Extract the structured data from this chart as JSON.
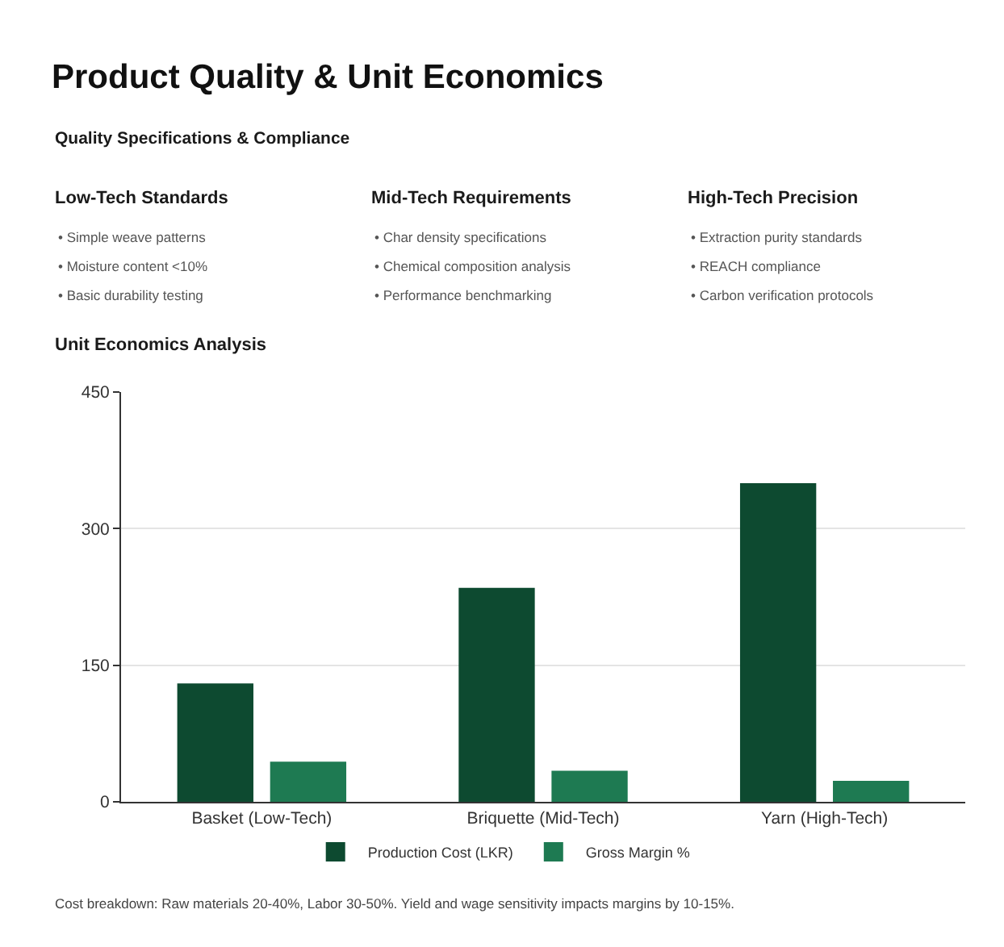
{
  "chart_data": {
    "type": "bar",
    "title": "Product Quality & Unit Economics",
    "subtitle": "Quality Specifications & Compliance",
    "annotations": [
      "Low-Tech Standards",
      "• Simple weave patterns",
      "• Moisture content <10%",
      "• Basic durability testing",
      "Mid-Tech Requirements",
      "• Char density specifications",
      "• Chemical composition analysis",
      "• Performance benchmarking",
      "High-Tech Precision",
      "• Extraction purity standards",
      "• REACH compliance",
      "• Carbon verification protocols",
      "Unit Economics Analysis",
      "Cost breakdown: Raw materials 20-40%, Labor 30-50%. Yield and wage sensitivity impacts margins by 10-15%."
    ],
    "categories": [
      "Basket (Low-Tech)",
      "Briquette (Mid-Tech)",
      "Yarn (High-Tech)"
    ],
    "series": [
      {
        "name": "Production Cost (LKR)",
        "color": "#0d4a30",
        "values": [
          130,
          235,
          350
        ]
      },
      {
        "name": "Gross Margin %",
        "color": "#1e7a52",
        "values": [
          44,
          34,
          23
        ]
      }
    ],
    "ylim": [
      0,
      450
    ],
    "yticks": [
      0,
      150,
      300,
      450
    ],
    "grid": "y",
    "legend": "bottom"
  }
}
